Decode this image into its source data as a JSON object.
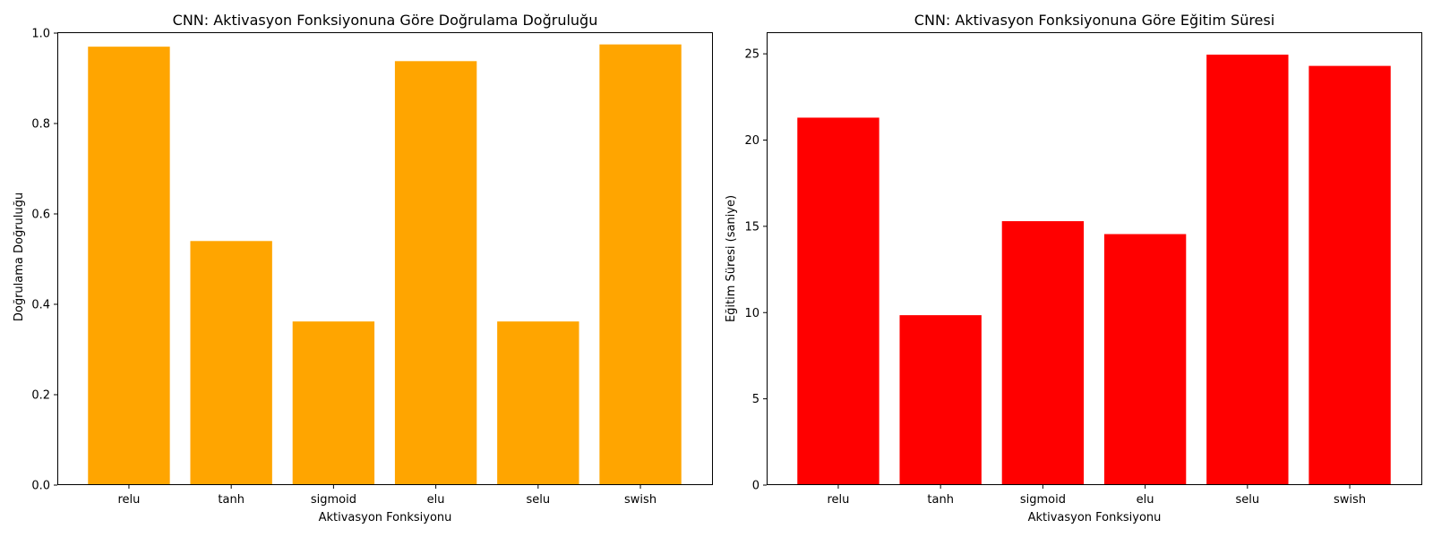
{
  "chart_data": [
    {
      "type": "bar",
      "title": "CNN: Aktivasyon Fonksiyonuna Göre Doğrulama Doğruluğu",
      "xlabel": "Aktivasyon Fonksiyonu",
      "ylabel": "Doğrulama Doğruluğu",
      "categories": [
        "relu",
        "tanh",
        "sigmoid",
        "elu",
        "selu",
        "swish"
      ],
      "values": [
        0.97,
        0.54,
        0.362,
        0.938,
        0.362,
        0.975
      ],
      "ylim": [
        0,
        1.0
      ],
      "yticks": [
        0.0,
        0.2,
        0.4,
        0.6,
        0.8,
        1.0
      ],
      "ytick_labels": [
        "0.0",
        "0.2",
        "0.4",
        "0.6",
        "0.8",
        "1.0"
      ],
      "color": "#ffa500",
      "grid": false,
      "legend": false
    },
    {
      "type": "bar",
      "title": "CNN: Aktivasyon Fonksiyonuna Göre Eğitim Süresi",
      "xlabel": "Aktivasyon Fonksiyonu",
      "ylabel": "Eğitim Süresi (saniye)",
      "categories": [
        "relu",
        "tanh",
        "sigmoid",
        "elu",
        "selu",
        "swish"
      ],
      "values": [
        21.3,
        9.85,
        15.3,
        14.55,
        24.95,
        24.3
      ],
      "ylim": [
        0,
        26.2
      ],
      "yticks": [
        0,
        5,
        10,
        15,
        20,
        25
      ],
      "ytick_labels": [
        "0",
        "5",
        "10",
        "15",
        "20",
        "25"
      ],
      "color": "#ff0000",
      "grid": false,
      "legend": false
    }
  ]
}
